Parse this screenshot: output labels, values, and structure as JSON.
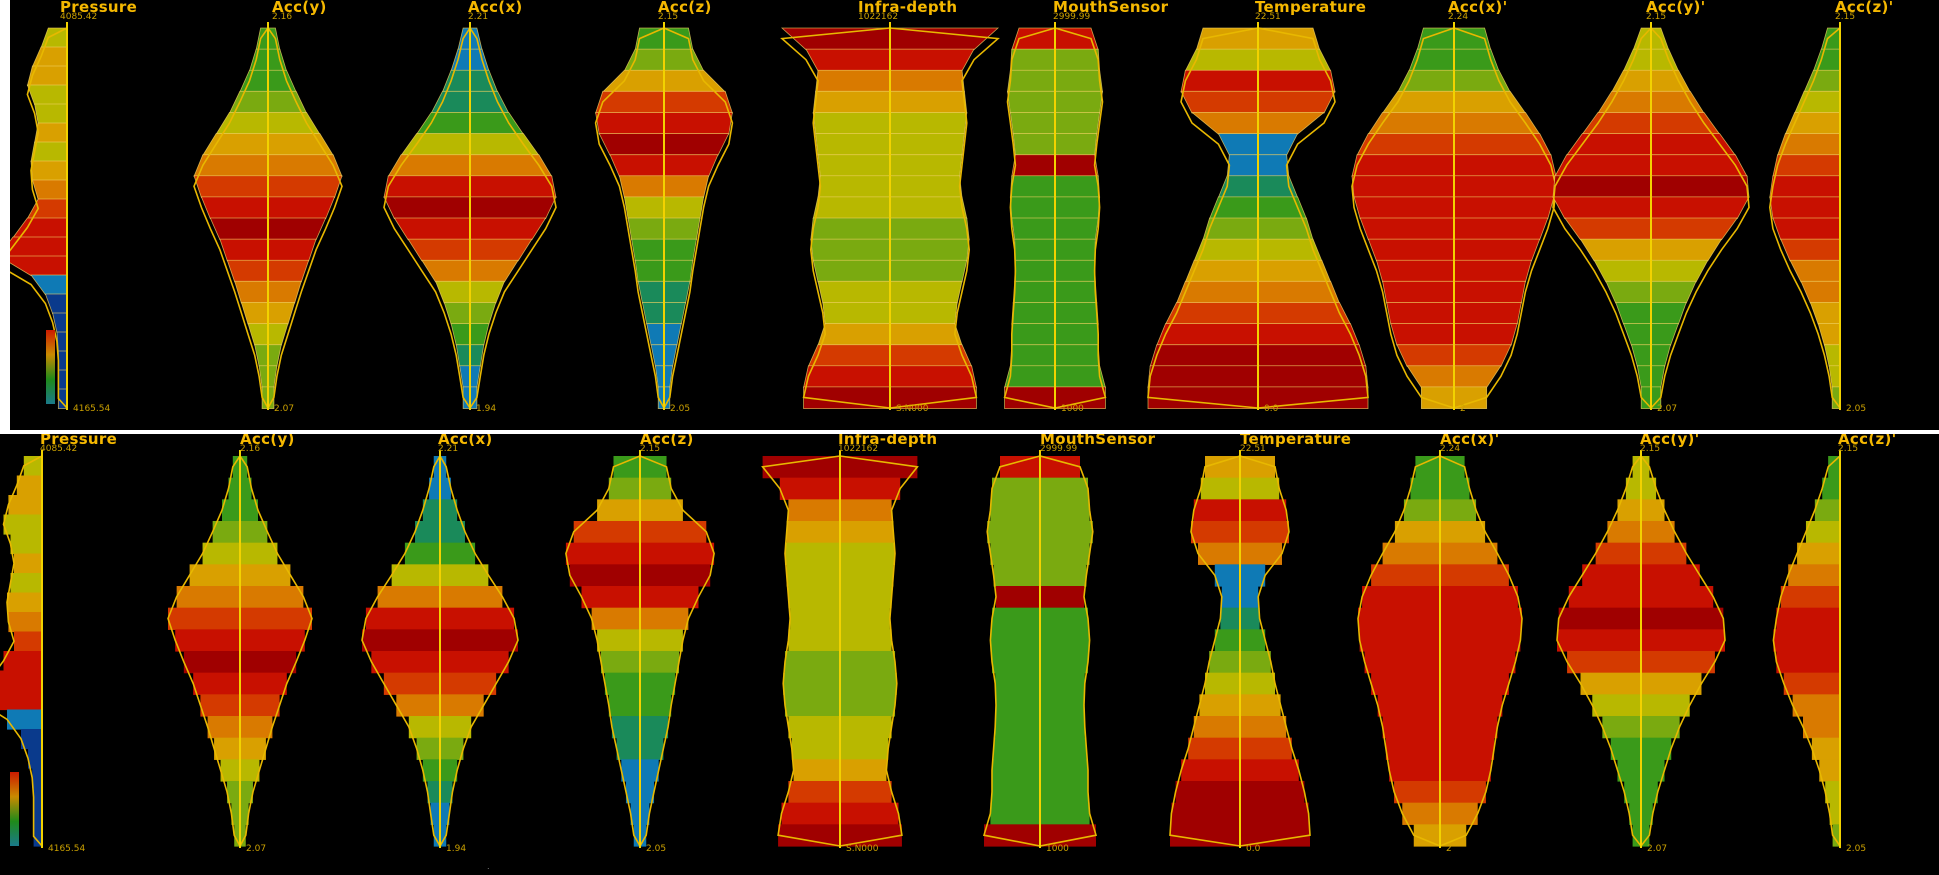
{
  "figure": {
    "caption_dot": "."
  },
  "panels": [
    {
      "id": "top",
      "style": "band",
      "attributes": [
        {
          "name": "Pressure",
          "max": "4085.42",
          "min": "4165.54"
        },
        {
          "name": "Acc(y)",
          "max": "2.16",
          "min": "2.07"
        },
        {
          "name": "Acc(x)",
          "max": "2.21",
          "min": "1.94"
        },
        {
          "name": "Acc(z)",
          "max": "2.15",
          "min": "2.05"
        },
        {
          "name": "Infra-depth",
          "max": "1022162",
          "min": "S.N000"
        },
        {
          "name": "MouthSensor",
          "max": "2999.99",
          "min": "1000"
        },
        {
          "name": "Temperature",
          "max": "22.51",
          "min": "0.0"
        },
        {
          "name": "Acc(x)'",
          "max": "2.24",
          "min": "2"
        },
        {
          "name": "Acc(y)'",
          "max": "2.15",
          "min": "2.07"
        },
        {
          "name": "Acc(z)'",
          "max": "2.15",
          "min": "2.05"
        }
      ]
    },
    {
      "id": "bottom",
      "style": "smooth",
      "attributes": [
        {
          "name": "Pressure",
          "max": "4085.42",
          "min": "4165.54"
        },
        {
          "name": "Acc(y)",
          "max": "2.16",
          "min": "2.07"
        },
        {
          "name": "Acc(x)",
          "max": "2.21",
          "min": "1.94"
        },
        {
          "name": "Acc(z)",
          "max": "2.15",
          "min": "2.05"
        },
        {
          "name": "Infra-depth",
          "max": "1022162",
          "min": "S.N000"
        },
        {
          "name": "MouthSensor",
          "max": "2999.99",
          "min": "1000"
        },
        {
          "name": "Temperature",
          "max": "22.51",
          "min": "0.0"
        },
        {
          "name": "Acc(x)'",
          "max": "2.24",
          "min": "2"
        },
        {
          "name": "Acc(y)'",
          "max": "2.15",
          "min": "2.07"
        },
        {
          "name": "Acc(z)'",
          "max": "2.15",
          "min": "2.05"
        }
      ]
    }
  ],
  "colors": {
    "background": "#000000",
    "axis": "#f2d200",
    "outline": "#e8b800",
    "label": "#f5b800",
    "ramp": [
      "#0a3a8c",
      "#0f7ab5",
      "#1a8a5a",
      "#3a9a1a",
      "#7aaa10",
      "#b8b800",
      "#d9a000",
      "#d97a00",
      "#d43a00",
      "#c81000",
      "#a00000"
    ]
  },
  "legend": {
    "ramp": [
      "#cc1a00",
      "#c98a00",
      "#1f8a1a",
      "#1a7a8a"
    ]
  },
  "profiles": [
    {
      "attr": "Pressure",
      "widths": [
        0.26,
        0.36,
        0.48,
        0.55,
        0.45,
        0.4,
        0.45,
        0.5,
        0.48,
        0.4,
        0.55,
        0.75,
        0.95,
        0.5,
        0.3,
        0.2,
        0.14,
        0.12,
        0.12,
        0.12
      ],
      "shades": [
        5,
        6,
        6,
        5,
        5,
        6,
        5,
        6,
        7,
        8,
        9,
        9,
        9,
        1,
        0,
        0,
        0,
        0,
        0,
        0
      ],
      "left_only": true
    },
    {
      "attr": "Acc(y)",
      "widths": [
        0.1,
        0.16,
        0.25,
        0.38,
        0.52,
        0.7,
        0.88,
        1.0,
        0.9,
        0.78,
        0.65,
        0.55,
        0.45,
        0.36,
        0.27,
        0.18,
        0.12,
        0.08
      ],
      "shades": [
        3,
        3,
        3,
        4,
        5,
        6,
        7,
        8,
        9,
        10,
        9,
        8,
        7,
        6,
        5,
        4,
        4,
        4
      ],
      "left_only": false
    },
    {
      "attr": "Acc(x)",
      "widths": [
        0.08,
        0.14,
        0.22,
        0.32,
        0.45,
        0.62,
        0.8,
        0.95,
        1.0,
        0.88,
        0.72,
        0.56,
        0.4,
        0.3,
        0.22,
        0.16,
        0.12,
        0.08
      ],
      "shades": [
        1,
        1,
        2,
        2,
        3,
        5,
        7,
        9,
        10,
        9,
        8,
        7,
        5,
        4,
        3,
        2,
        1,
        1
      ],
      "left_only": false
    },
    {
      "attr": "Acc(z)",
      "widths": [
        0.34,
        0.4,
        0.55,
        0.85,
        0.95,
        0.9,
        0.75,
        0.62,
        0.55,
        0.5,
        0.45,
        0.4,
        0.36,
        0.3,
        0.24,
        0.18,
        0.12,
        0.08
      ],
      "shades": [
        3,
        4,
        6,
        8,
        9,
        10,
        9,
        7,
        5,
        4,
        3,
        3,
        2,
        2,
        1,
        1,
        1,
        1
      ],
      "left_only": false
    },
    {
      "attr": "Infra-depth",
      "widths": [
        0.9,
        0.7,
        0.6,
        0.62,
        0.64,
        0.62,
        0.6,
        0.58,
        0.6,
        0.64,
        0.66,
        0.64,
        0.6,
        0.56,
        0.54,
        0.6,
        0.68,
        0.72
      ],
      "shades": [
        10,
        9,
        7,
        6,
        5,
        5,
        5,
        5,
        5,
        4,
        4,
        4,
        5,
        5,
        6,
        8,
        9,
        10
      ],
      "left_only": false
    },
    {
      "attr": "MouthSensor",
      "widths": [
        0.5,
        0.6,
        0.62,
        0.66,
        0.62,
        0.58,
        0.55,
        0.6,
        0.62,
        0.6,
        0.56,
        0.55,
        0.56,
        0.58,
        0.6,
        0.6,
        0.62,
        0.7
      ],
      "shades": [
        9,
        4,
        4,
        4,
        4,
        4,
        10,
        3,
        3,
        3,
        3,
        3,
        3,
        3,
        3,
        3,
        3,
        10
      ],
      "left_only": false
    },
    {
      "attr": "Temperature",
      "widths": [
        0.5,
        0.56,
        0.66,
        0.7,
        0.6,
        0.36,
        0.26,
        0.28,
        0.36,
        0.44,
        0.5,
        0.58,
        0.66,
        0.74,
        0.84,
        0.92,
        0.98,
        1.0
      ],
      "shades": [
        6,
        5,
        9,
        8,
        7,
        1,
        1,
        2,
        3,
        4,
        5,
        6,
        7,
        8,
        9,
        10,
        10,
        10
      ],
      "left_only": false
    },
    {
      "attr": "Acc(x)'",
      "widths": [
        0.3,
        0.36,
        0.44,
        0.55,
        0.7,
        0.84,
        0.95,
        1.0,
        0.98,
        0.92,
        0.84,
        0.76,
        0.7,
        0.66,
        0.62,
        0.56,
        0.46,
        0.32
      ],
      "shades": [
        3,
        3,
        4,
        6,
        7,
        8,
        9,
        9,
        9,
        9,
        9,
        9,
        9,
        9,
        9,
        8,
        7,
        6
      ],
      "left_only": false
    },
    {
      "attr": "Acc(y)'",
      "widths": [
        0.1,
        0.18,
        0.28,
        0.4,
        0.54,
        0.7,
        0.86,
        0.98,
        1.0,
        0.88,
        0.72,
        0.58,
        0.46,
        0.36,
        0.28,
        0.2,
        0.14,
        0.1
      ],
      "shades": [
        5,
        5,
        6,
        7,
        8,
        9,
        9,
        10,
        9,
        8,
        6,
        5,
        4,
        3,
        3,
        3,
        3,
        3
      ],
      "left_only": false
    },
    {
      "attr": "Acc(z)'",
      "widths": [
        0.16,
        0.24,
        0.34,
        0.46,
        0.58,
        0.7,
        0.8,
        0.86,
        0.9,
        0.86,
        0.76,
        0.64,
        0.5,
        0.38,
        0.28,
        0.2,
        0.14,
        0.1
      ],
      "shades": [
        3,
        3,
        4,
        5,
        6,
        7,
        8,
        9,
        9,
        9,
        8,
        7,
        7,
        6,
        6,
        5,
        5,
        4
      ],
      "left_only": true
    }
  ]
}
